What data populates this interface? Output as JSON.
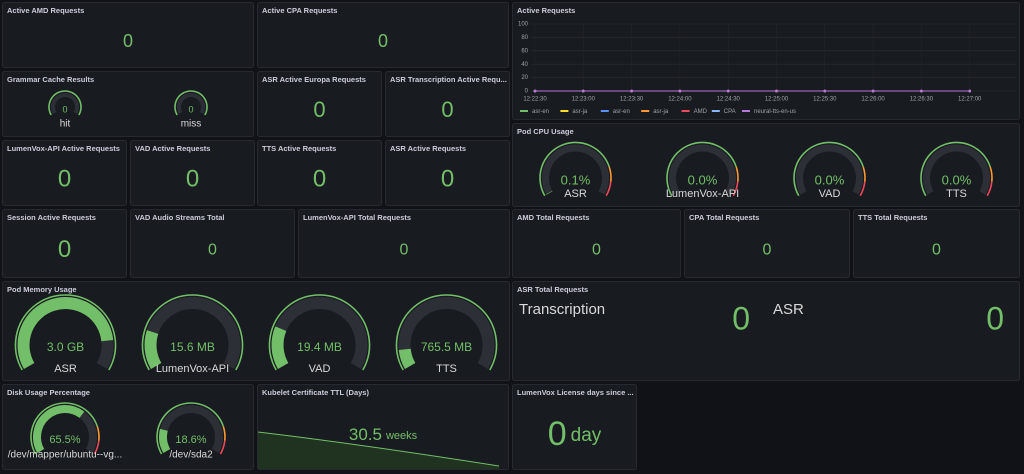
{
  "panels": [
    {
      "title": "Active AMD Requests",
      "value": 0
    },
    {
      "title": "Active CPA Requests",
      "value": 0
    },
    {
      "title": "Active Requests",
      "ylim": [
        0,
        100
      ],
      "yticks": [
        0,
        20,
        40,
        60,
        80,
        100
      ],
      "xticks": [
        "12:22:30",
        "12:23:00",
        "12:23:30",
        "12:24:00",
        "12:24:30",
        "12:25:00",
        "12:25:30",
        "12:26:00",
        "12:26:30",
        "12:27:00"
      ],
      "series": [
        {
          "name": "asr-en",
          "color": "#73bf69",
          "values": [
            0,
            0,
            0,
            0,
            0,
            0,
            0,
            0,
            0,
            0
          ]
        },
        {
          "name": "asr-ja",
          "color": "#fade2a",
          "values": [
            0,
            0,
            0,
            0,
            0,
            0,
            0,
            0,
            0,
            0
          ]
        },
        {
          "name": "asr-en",
          "color": "#5794f2",
          "values": [
            0,
            0,
            0,
            0,
            0,
            0,
            0,
            0,
            0,
            0
          ]
        },
        {
          "name": "asr-ja",
          "color": "#ff9830",
          "values": [
            0,
            0,
            0,
            0,
            0,
            0,
            0,
            0,
            0,
            0
          ]
        },
        {
          "name": "AMD",
          "color": "#f2495c",
          "values": [
            0,
            0,
            0,
            0,
            0,
            0,
            0,
            0,
            0,
            0
          ]
        },
        {
          "name": "CPA",
          "color": "#8ab8ff",
          "values": [
            0,
            0,
            0,
            0,
            0,
            0,
            0,
            0,
            0,
            0
          ]
        },
        {
          "name": "neural-tts-en-us",
          "color": "#b877d9",
          "values": [
            0,
            0,
            0,
            0,
            0,
            0,
            0,
            0,
            0,
            0
          ]
        }
      ]
    },
    {
      "title": "Grammar Cache Results",
      "gauges": [
        {
          "value": 0,
          "label": "hit"
        },
        {
          "value": 0,
          "label": "miss"
        }
      ]
    },
    {
      "title": "ASR Active Europa Requests",
      "value": 0
    },
    {
      "title": "ASR Transcription Active Requ...",
      "value": 0
    },
    {
      "title": "LumenVox-API Active Requests",
      "value": 0
    },
    {
      "title": "VAD Active Requests",
      "value": 0
    },
    {
      "title": "TTS Active Requests",
      "value": 0
    },
    {
      "title": "ASR Active Requests",
      "value": 0
    },
    {
      "title": "Pod CPU Usage",
      "gauges": [
        {
          "value": "0.1%",
          "label": "ASR"
        },
        {
          "value": "0.0%",
          "label": "LumenVox-API"
        },
        {
          "value": "0.0%",
          "label": "VAD"
        },
        {
          "value": "0.0%",
          "label": "TTS"
        }
      ]
    },
    {
      "title": "Session Active Requests",
      "value": 0
    },
    {
      "title": "VAD Audio Streams Total",
      "value": 0
    },
    {
      "title": "LumenVox-API Total Requests",
      "value": 0
    },
    {
      "title": "AMD Total Requests",
      "value": 0
    },
    {
      "title": "CPA Total Requests",
      "value": 0
    },
    {
      "title": "TTS Total Requests",
      "value": 0
    },
    {
      "title": "Pod Memory Usage",
      "gauges": [
        {
          "value": "3.0 GB",
          "label": "ASR"
        },
        {
          "value": "15.6 MB",
          "label": "LumenVox-API"
        },
        {
          "value": "19.4 MB",
          "label": "VAD"
        },
        {
          "value": "765.5 MB",
          "label": "TTS"
        }
      ]
    },
    {
      "title": "ASR Total Requests",
      "items": [
        {
          "label": "Transcription",
          "value": 0
        },
        {
          "label": "ASR",
          "value": 0
        }
      ]
    },
    {
      "title": "Disk Usage Percentage",
      "gauges": [
        {
          "value": "65.5%",
          "label": "/dev/mapper/ubuntu--vg..."
        },
        {
          "value": "18.6%",
          "label": "/dev/sda2"
        }
      ]
    },
    {
      "title": "Kubelet Certificate TTL (Days)",
      "value": 30.5,
      "unit": "weeks"
    },
    {
      "title": "LumenVox License days since ...",
      "value": 0,
      "unit": "day"
    }
  ]
}
